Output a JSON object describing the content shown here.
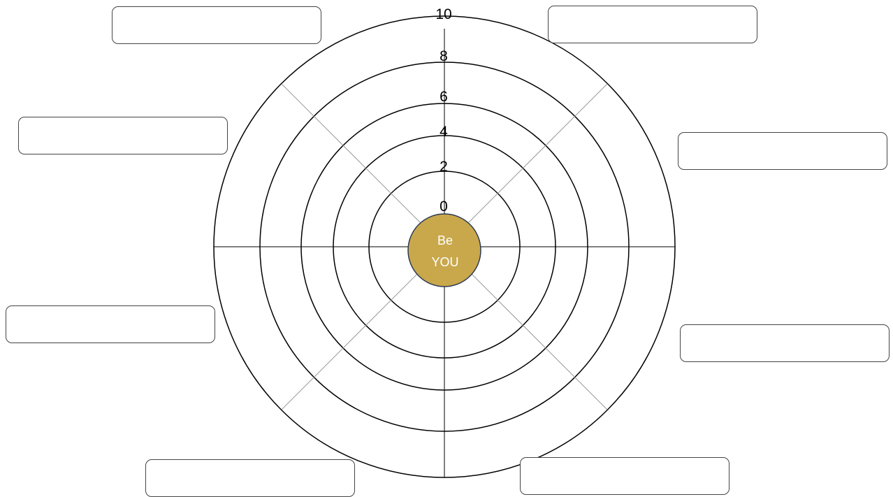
{
  "wheel": {
    "scale_labels": [
      "0",
      "2",
      "4",
      "6",
      "8",
      "10"
    ],
    "scale_values": [
      0,
      2,
      4,
      6,
      8,
      10
    ],
    "center": {
      "line1": "Be",
      "line2": "YOU",
      "fill_color": "#C9A84C",
      "text_color": "#FFFFFF"
    },
    "ring_color": "#000000",
    "spoke_color": "#000000",
    "diagonal_spoke_color": "#999999"
  },
  "segment_boxes": [
    {
      "id": "top-left",
      "text": ""
    },
    {
      "id": "top-right",
      "text": ""
    },
    {
      "id": "upper-left",
      "text": ""
    },
    {
      "id": "upper-right",
      "text": ""
    },
    {
      "id": "lower-left",
      "text": ""
    },
    {
      "id": "lower-right",
      "text": ""
    },
    {
      "id": "bottom-left",
      "text": ""
    },
    {
      "id": "bottom-right",
      "text": ""
    }
  ]
}
